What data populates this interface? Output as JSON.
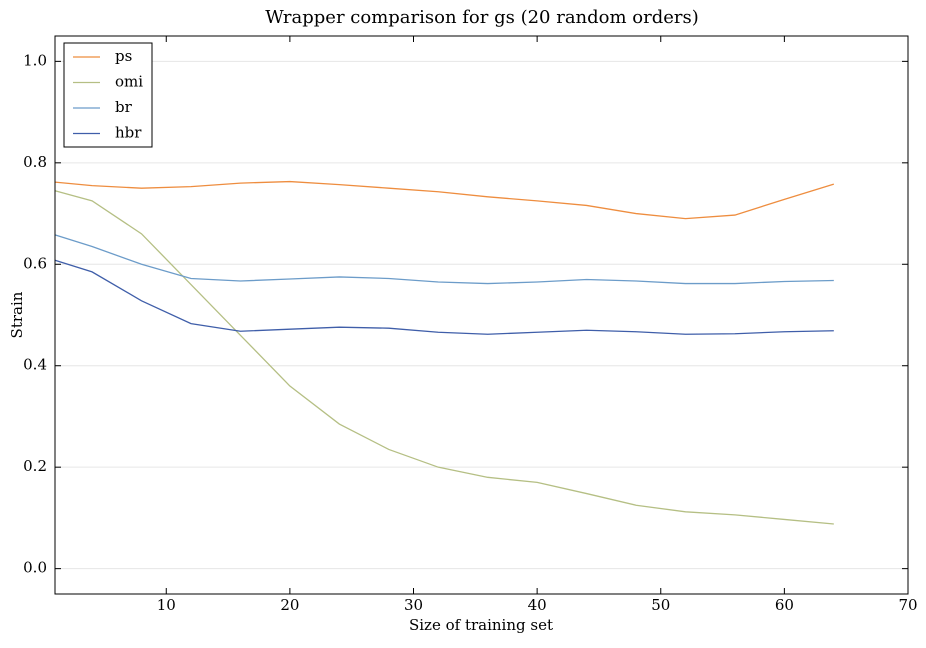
{
  "chart_data": {
    "type": "line",
    "title": "Wrapper comparison for gs (20 random orders)",
    "xlabel": "Size of training set",
    "ylabel": "Strain",
    "x": [
      1,
      4,
      8,
      12,
      16,
      20,
      24,
      28,
      32,
      36,
      40,
      44,
      48,
      52,
      56,
      60,
      64
    ],
    "series": [
      {
        "name": "ps",
        "color": "#ee8d3f",
        "values": [
          0.762,
          0.755,
          0.75,
          0.753,
          0.76,
          0.763,
          0.757,
          0.75,
          0.743,
          0.733,
          0.725,
          0.716,
          0.7,
          0.69,
          0.697,
          0.728,
          0.758
        ]
      },
      {
        "name": "omi",
        "color": "#b5bf84",
        "values": [
          0.745,
          0.725,
          0.66,
          0.56,
          0.46,
          0.36,
          0.285,
          0.235,
          0.2,
          0.18,
          0.17,
          0.148,
          0.125,
          0.112,
          0.106,
          0.097,
          0.088
        ]
      },
      {
        "name": "br",
        "color": "#6c9cc9",
        "values": [
          0.658,
          0.635,
          0.6,
          0.572,
          0.567,
          0.571,
          0.575,
          0.572,
          0.565,
          0.562,
          0.565,
          0.57,
          0.567,
          0.562,
          0.562,
          0.566,
          0.568
        ]
      },
      {
        "name": "hbr",
        "color": "#3f5ea9",
        "values": [
          0.608,
          0.585,
          0.528,
          0.483,
          0.468,
          0.472,
          0.476,
          0.474,
          0.466,
          0.462,
          0.466,
          0.47,
          0.467,
          0.462,
          0.463,
          0.467,
          0.469
        ]
      }
    ],
    "xlim": [
      1,
      70
    ],
    "xticks": [
      10,
      20,
      30,
      40,
      50,
      60,
      70
    ],
    "ylim": [
      -0.05,
      1.05
    ],
    "yticks": [
      {
        "value": 0,
        "label": "0.0"
      },
      0.2,
      0.4,
      0.6,
      0.8,
      {
        "value": 1,
        "label": "1.0"
      }
    ],
    "grid": true,
    "legend": "upper left"
  }
}
